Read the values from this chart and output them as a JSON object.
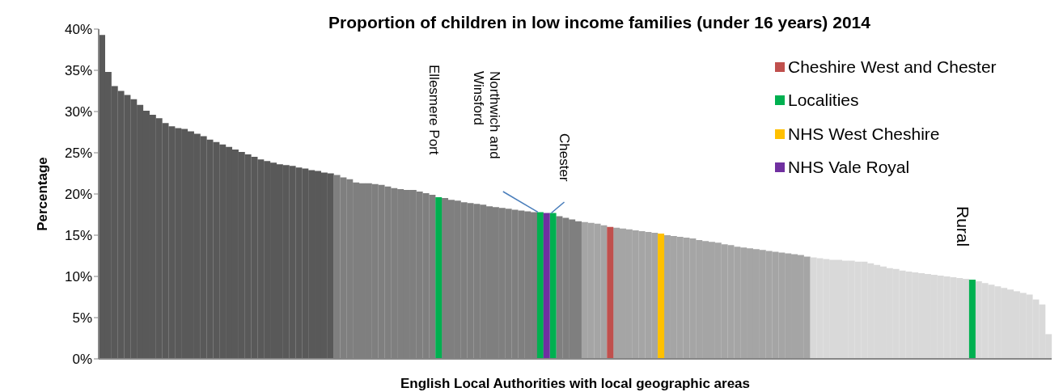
{
  "chart_data": {
    "type": "bar",
    "stacked": true,
    "title": "Proportion of children in low income families (under 16 years) 2014",
    "xlabel": "English Local Authorities with local geographic areas",
    "ylabel": "Percentage",
    "ylim": [
      0,
      40
    ],
    "yticks": [
      {
        "value": 0,
        "label": "0%"
      },
      {
        "value": 5,
        "label": "5%"
      },
      {
        "value": 10,
        "label": "10%"
      },
      {
        "value": 15,
        "label": "15%"
      },
      {
        "value": 20,
        "label": "20%"
      },
      {
        "value": 25,
        "label": "25%"
      },
      {
        "value": 30,
        "label": "30%"
      },
      {
        "value": 35,
        "label": "35%"
      },
      {
        "value": 40,
        "label": "40%"
      }
    ],
    "grid": false,
    "legend": "top right",
    "annotations": [
      "Ellesmere Port",
      "Northwich and Winsford",
      "Chester",
      "Rural"
    ],
    "categories": [
      null,
      null,
      null,
      null,
      null,
      null,
      null,
      null,
      null,
      null,
      null,
      null,
      null,
      null,
      null,
      null,
      null,
      null,
      null,
      null,
      null,
      null,
      null,
      null,
      null,
      null,
      null,
      null,
      null,
      null,
      null,
      null,
      null,
      null,
      null,
      null,
      null,
      null,
      null,
      null,
      null,
      null,
      null,
      null,
      null,
      null,
      null,
      null,
      null,
      null,
      null,
      null,
      null,
      null,
      null,
      null,
      null,
      null,
      null,
      null,
      null,
      null,
      null,
      null,
      null,
      null,
      null,
      null,
      null,
      null,
      null,
      null,
      null,
      null,
      null,
      null,
      null,
      null,
      null,
      null,
      null,
      null,
      null,
      null,
      null,
      null,
      null,
      null,
      null,
      null,
      null,
      null,
      null,
      null,
      null,
      null,
      null,
      null,
      null,
      null,
      null,
      null,
      null,
      null,
      null,
      null,
      null,
      null,
      null,
      null,
      null,
      null,
      null,
      null,
      null,
      null,
      null,
      null,
      null,
      null,
      null,
      null,
      null,
      null,
      null,
      null,
      null,
      null,
      null,
      null,
      null,
      null,
      null,
      null,
      null,
      null,
      null,
      null,
      null,
      null,
      null,
      null,
      null,
      null,
      null,
      null,
      null,
      null,
      null,
      null
    ],
    "series": [
      {
        "colors": [
          "#595959",
          "#595959",
          "#595959",
          "#595959",
          "#595959",
          "#595959",
          "#595959",
          "#595959",
          "#595959",
          "#595959",
          "#595959",
          "#595959",
          "#595959",
          "#595959",
          "#595959",
          "#595959",
          "#595959",
          "#595959",
          "#595959",
          "#595959",
          "#595959",
          "#595959",
          "#595959",
          "#595959",
          "#595959",
          "#595959",
          "#595959",
          "#595959",
          "#595959",
          "#595959",
          "#595959",
          "#595959",
          "#595959",
          "#595959",
          "#595959",
          "#595959",
          "#595959",
          "#7f7f7f",
          "#7f7f7f",
          "#7f7f7f",
          "#7f7f7f",
          "#7f7f7f",
          "#7f7f7f",
          "#7f7f7f",
          "#7f7f7f",
          "#7f7f7f",
          "#7f7f7f",
          "#7f7f7f",
          "#7f7f7f",
          "#7f7f7f",
          "#7f7f7f",
          "#7f7f7f",
          "#7f7f7f",
          "#7f7f7f",
          "#7f7f7f",
          "#7f7f7f",
          "#7f7f7f",
          "#7f7f7f",
          "#7f7f7f",
          "#7f7f7f",
          "#7f7f7f",
          "#7f7f7f",
          "#7f7f7f",
          "#7f7f7f",
          "#7f7f7f",
          "#7f7f7f",
          "#7f7f7f",
          "#7f7f7f",
          "#7f7f7f",
          "#7f7f7f",
          "#7f7f7f",
          "#7f7f7f",
          "#7f7f7f",
          "#7f7f7f",
          "#7f7f7f",
          "#7f7f7f",
          "#a5a5a5",
          "#a5a5a5",
          "#a5a5a5",
          "#a5a5a5",
          "#a5a5a5",
          "#a5a5a5",
          "#a5a5a5",
          "#a5a5a5",
          "#a5a5a5",
          "#a5a5a5",
          "#a5a5a5",
          "#a5a5a5",
          "#a5a5a5",
          "#a5a5a5",
          "#a5a5a5",
          "#a5a5a5",
          "#a5a5a5",
          "#a5a5a5",
          "#a5a5a5",
          "#a5a5a5",
          "#a5a5a5",
          "#a5a5a5",
          "#a5a5a5",
          "#a5a5a5",
          "#a5a5a5",
          "#a5a5a5",
          "#a5a5a5",
          "#a5a5a5",
          "#a5a5a5",
          "#a5a5a5",
          "#a5a5a5",
          "#a5a5a5",
          "#a5a5a5",
          "#a5a5a5",
          "#a5a5a5",
          "#a5a5a5",
          "#d9d9d9",
          "#d9d9d9",
          "#d9d9d9",
          "#d9d9d9",
          "#d9d9d9",
          "#d9d9d9",
          "#d9d9d9",
          "#d9d9d9",
          "#d9d9d9",
          "#d9d9d9",
          "#d9d9d9",
          "#d9d9d9",
          "#d9d9d9",
          "#d9d9d9",
          "#d9d9d9",
          "#d9d9d9",
          "#d9d9d9",
          "#d9d9d9",
          "#d9d9d9",
          "#d9d9d9",
          "#d9d9d9",
          "#d9d9d9",
          "#d9d9d9",
          "#d9d9d9",
          "#d9d9d9",
          "#d9d9d9",
          "#d9d9d9",
          "#d9d9d9",
          "#d9d9d9",
          "#d9d9d9",
          "#d9d9d9",
          "#d9d9d9",
          "#d9d9d9",
          "#d9d9d9",
          "#d9d9d9",
          "#d9d9d9",
          "#d9d9d9",
          "#d9d9d9"
        ],
        "values": [
          39.3,
          34.8,
          33.1,
          32.5,
          32.0,
          31.5,
          30.8,
          30.1,
          29.6,
          29.2,
          28.6,
          28.2,
          28.0,
          27.9,
          27.6,
          27.3,
          27.0,
          26.6,
          26.3,
          26.0,
          25.7,
          25.4,
          25.1,
          24.8,
          24.5,
          24.2,
          24.0,
          23.8,
          23.6,
          23.5,
          23.4,
          23.2,
          23.1,
          22.9,
          22.8,
          22.6,
          22.5,
          22.3,
          22.0,
          21.8,
          21.4,
          21.3,
          21.3,
          21.2,
          21.1,
          20.9,
          20.7,
          20.6,
          20.5,
          20.5,
          20.3,
          20.1,
          19.9,
          null,
          19.5,
          19.3,
          19.2,
          19.0,
          18.9,
          18.8,
          18.7,
          18.5,
          18.4,
          18.3,
          18.2,
          18.1,
          18.0,
          17.9,
          17.8,
          null,
          null,
          null,
          17.3,
          17.1,
          16.9,
          16.7,
          16.6,
          16.5,
          16.4,
          16.2,
          null,
          15.9,
          15.8,
          15.7,
          15.6,
          15.5,
          15.4,
          15.3,
          null,
          15.0,
          14.9,
          14.8,
          14.7,
          14.6,
          14.4,
          14.3,
          14.2,
          14.1,
          13.9,
          13.8,
          13.6,
          13.5,
          13.4,
          13.3,
          13.2,
          13.1,
          13.0,
          12.9,
          12.8,
          12.7,
          12.6,
          12.4,
          12.3,
          12.2,
          12.1,
          12.0,
          12.0,
          11.9,
          11.9,
          11.8,
          11.8,
          11.6,
          11.4,
          11.2,
          11.0,
          10.9,
          10.7,
          10.6,
          10.5,
          10.4,
          10.3,
          10.2,
          10.1,
          10.0,
          9.9,
          9.8,
          9.7,
          null,
          9.4,
          9.2,
          9.0,
          8.8,
          8.6,
          8.4,
          8.2,
          8.0,
          7.8,
          7.2,
          6.6,
          3.0
        ]
      },
      {
        "name": "Cheshire West and Chester",
        "color": "#c0504d",
        "values": [
          null,
          null,
          null,
          null,
          null,
          null,
          null,
          null,
          null,
          null,
          null,
          null,
          null,
          null,
          null,
          null,
          null,
          null,
          null,
          null,
          null,
          null,
          null,
          null,
          null,
          null,
          null,
          null,
          null,
          null,
          null,
          null,
          null,
          null,
          null,
          null,
          null,
          null,
          null,
          null,
          null,
          null,
          null,
          null,
          null,
          null,
          null,
          null,
          null,
          null,
          null,
          null,
          null,
          null,
          null,
          null,
          null,
          null,
          null,
          null,
          null,
          null,
          null,
          null,
          null,
          null,
          null,
          null,
          null,
          null,
          null,
          null,
          null,
          null,
          null,
          null,
          null,
          null,
          null,
          null,
          16.0,
          null,
          null,
          null,
          null,
          null,
          null,
          null,
          null,
          null,
          null,
          null,
          null,
          null,
          null,
          null,
          null,
          null,
          null,
          null,
          null,
          null,
          null,
          null,
          null,
          null,
          null,
          null,
          null,
          null,
          null,
          null,
          null,
          null,
          null,
          null,
          null,
          null,
          null,
          null,
          null,
          null,
          null,
          null,
          null,
          null,
          null,
          null,
          null,
          null,
          null,
          null,
          null,
          null,
          null,
          null,
          null,
          null,
          null,
          null,
          null,
          null,
          null,
          null,
          null,
          null,
          null,
          null,
          null,
          null
        ]
      },
      {
        "name": "Localities",
        "color": "#00b050",
        "values": [
          null,
          null,
          null,
          null,
          null,
          null,
          null,
          null,
          null,
          null,
          null,
          null,
          null,
          null,
          null,
          null,
          null,
          null,
          null,
          null,
          null,
          null,
          null,
          null,
          null,
          null,
          null,
          null,
          null,
          null,
          null,
          null,
          null,
          null,
          null,
          null,
          null,
          null,
          null,
          null,
          null,
          null,
          null,
          null,
          null,
          null,
          null,
          null,
          null,
          null,
          null,
          null,
          null,
          19.6,
          null,
          null,
          null,
          null,
          null,
          null,
          null,
          null,
          null,
          null,
          null,
          null,
          null,
          null,
          null,
          17.8,
          null,
          17.7,
          null,
          null,
          null,
          null,
          null,
          null,
          null,
          null,
          null,
          null,
          null,
          null,
          null,
          null,
          null,
          null,
          null,
          null,
          null,
          null,
          null,
          null,
          null,
          null,
          null,
          null,
          null,
          null,
          null,
          null,
          null,
          null,
          null,
          null,
          null,
          null,
          null,
          null,
          null,
          null,
          null,
          null,
          null,
          null,
          null,
          null,
          null,
          null,
          null,
          null,
          null,
          null,
          null,
          null,
          null,
          null,
          null,
          null,
          null,
          null,
          null,
          null,
          null,
          null,
          null,
          9.6,
          null,
          null,
          null,
          null,
          null,
          null,
          null,
          null,
          null,
          null,
          null,
          null
        ]
      },
      {
        "name": "NHS West Cheshire",
        "color": "#ffc000",
        "values": [
          null,
          null,
          null,
          null,
          null,
          null,
          null,
          null,
          null,
          null,
          null,
          null,
          null,
          null,
          null,
          null,
          null,
          null,
          null,
          null,
          null,
          null,
          null,
          null,
          null,
          null,
          null,
          null,
          null,
          null,
          null,
          null,
          null,
          null,
          null,
          null,
          null,
          null,
          null,
          null,
          null,
          null,
          null,
          null,
          null,
          null,
          null,
          null,
          null,
          null,
          null,
          null,
          null,
          null,
          null,
          null,
          null,
          null,
          null,
          null,
          null,
          null,
          null,
          null,
          null,
          null,
          null,
          null,
          null,
          null,
          null,
          null,
          null,
          null,
          null,
          null,
          null,
          null,
          null,
          null,
          null,
          null,
          null,
          null,
          null,
          null,
          null,
          null,
          15.2,
          null,
          null,
          null,
          null,
          null,
          null,
          null,
          null,
          null,
          null,
          null,
          null,
          null,
          null,
          null,
          null,
          null,
          null,
          null,
          null,
          null,
          null,
          null,
          null,
          null,
          null,
          null,
          null,
          null,
          null,
          null,
          null,
          null,
          null,
          null,
          null,
          null,
          null,
          null,
          null,
          null,
          null,
          null,
          null,
          null,
          null,
          null,
          null,
          null,
          null,
          null,
          null,
          null,
          null,
          null,
          null,
          null,
          null,
          null,
          null,
          null
        ]
      },
      {
        "name": "NHS Vale Royal",
        "color": "#7030a0",
        "values": [
          null,
          null,
          null,
          null,
          null,
          null,
          null,
          null,
          null,
          null,
          null,
          null,
          null,
          null,
          null,
          null,
          null,
          null,
          null,
          null,
          null,
          null,
          null,
          null,
          null,
          null,
          null,
          null,
          null,
          null,
          null,
          null,
          null,
          null,
          null,
          null,
          null,
          null,
          null,
          null,
          null,
          null,
          null,
          null,
          null,
          null,
          null,
          null,
          null,
          null,
          null,
          null,
          null,
          null,
          null,
          null,
          null,
          null,
          null,
          null,
          null,
          null,
          null,
          null,
          null,
          null,
          null,
          null,
          null,
          null,
          17.7,
          null,
          null,
          null,
          null,
          null,
          null,
          null,
          null,
          null,
          null,
          null,
          null,
          null,
          null,
          null,
          null,
          null,
          null,
          null,
          null,
          null,
          null,
          null,
          null,
          null,
          null,
          null,
          null,
          null,
          null,
          null,
          null,
          null,
          null,
          null,
          null,
          null,
          null,
          null,
          null,
          null,
          null,
          null,
          null,
          null,
          null,
          null,
          null,
          null,
          null,
          null,
          null,
          null,
          null,
          null,
          null,
          null,
          null,
          null,
          null,
          null,
          null,
          null,
          null,
          null,
          null,
          null,
          null,
          null,
          null,
          null,
          null,
          null,
          null,
          null,
          null,
          null,
          null,
          null
        ]
      }
    ]
  }
}
